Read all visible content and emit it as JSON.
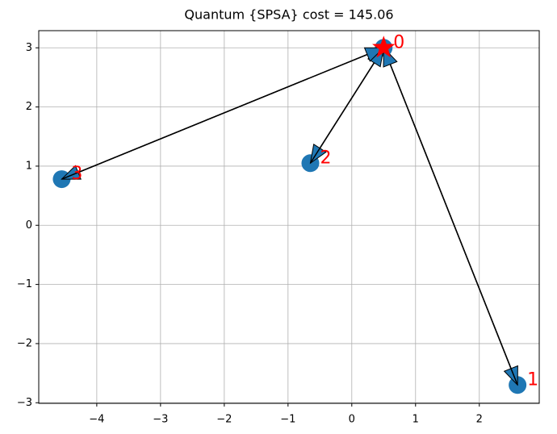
{
  "chart_data": {
    "type": "scatter",
    "title": "Quantum {SPSA} cost = 145.06",
    "x": [
      0.5,
      2.6,
      -0.65,
      -4.55
    ],
    "values": [
      3.0,
      -2.7,
      1.05,
      0.78
    ],
    "point_labels": [
      "0",
      "1",
      "2",
      "3"
    ],
    "edges": [
      [
        0,
        1
      ],
      [
        1,
        0
      ],
      [
        0,
        2
      ],
      [
        2,
        0
      ],
      [
        0,
        3
      ],
      [
        3,
        0
      ]
    ],
    "color": "#1f77b4",
    "highlight": 0,
    "highlight_color": "red",
    "label_color": "red",
    "xlim": [
      -4.91,
      2.94
    ],
    "xticks": [
      {
        "value": -4,
        "label": "−4"
      },
      {
        "value": -3,
        "label": "−3"
      },
      {
        "value": -2,
        "label": "−2"
      },
      {
        "value": -1,
        "label": "−1"
      },
      0,
      1,
      2
    ],
    "ylim": [
      -3.01,
      3.29
    ],
    "yticks": [
      {
        "value": -3,
        "label": "−3"
      },
      {
        "value": -2,
        "label": "−2"
      },
      {
        "value": -1,
        "label": "−1"
      },
      0,
      1,
      2,
      3
    ],
    "grid": true
  }
}
